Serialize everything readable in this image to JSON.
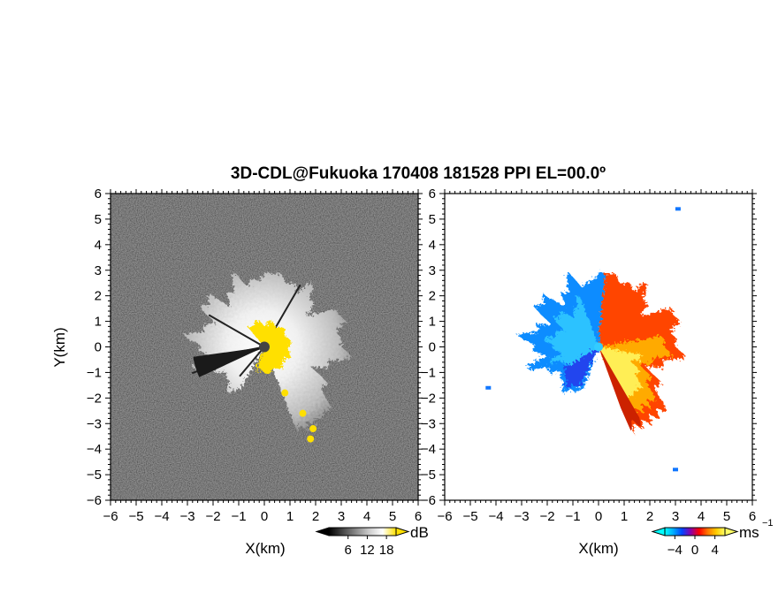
{
  "figure": {
    "title": "3D-CDL@Fukuoka 170408 181528 PPI EL=00.0º"
  },
  "chart_data": [
    {
      "type": "heatmap",
      "name": "reflectivity-ppi",
      "xlabel": "X(km)",
      "ylabel": "Y(km)",
      "xlim": [
        -6,
        6
      ],
      "ylim": [
        -6,
        6
      ],
      "xticks": [
        "−6",
        "−5",
        "−4",
        "−3",
        "−2",
        "−1",
        "0",
        "1",
        "2",
        "3",
        "4",
        "5",
        "6"
      ],
      "yticks": [
        "6",
        "5",
        "4",
        "3",
        "2",
        "1",
        "0",
        "−1",
        "−2",
        "−3",
        "−4",
        "−5",
        "−6"
      ],
      "background_noise": "dark gray speckle",
      "echo_sector_deg_from_north": [
        -160,
        160
      ],
      "echo_max_range_km": 3.8,
      "yellow_near_field_points": [
        [
          -0.4,
          0.7
        ],
        [
          0.2,
          -0.8
        ],
        [
          0.8,
          -1.8
        ],
        [
          1.5,
          -2.6
        ],
        [
          1.9,
          -3.2
        ],
        [
          1.8,
          -3.6
        ]
      ],
      "colorbar": {
        "label": "dB",
        "ticks": [
          "6",
          "12",
          "18"
        ],
        "range": [
          0,
          21
        ],
        "colors": [
          "#000000",
          "#444444",
          "#888888",
          "#cccccc",
          "#ffffff",
          "#ffe000"
        ]
      }
    },
    {
      "type": "heatmap",
      "name": "doppler-velocity-ppi",
      "xlabel": "X(km)",
      "xlim": [
        -6,
        6
      ],
      "ylim": [
        -6,
        6
      ],
      "xticks": [
        "−6",
        "−5",
        "−4",
        "−3",
        "−2",
        "−1",
        "0",
        "1",
        "2",
        "3",
        "4",
        "5",
        "6"
      ],
      "yticks": [
        "6",
        "5",
        "4",
        "3",
        "2",
        "1",
        "0",
        "−1",
        "−2",
        "−3",
        "−4",
        "−5",
        "−6"
      ],
      "west_sector_velocity_ms": -4,
      "east_sector_velocity_ms": 4,
      "isolated_points": [
        [
          3.1,
          5.4
        ],
        [
          -4.3,
          -1.6
        ],
        [
          3.0,
          -4.8
        ]
      ],
      "colorbar": {
        "label": "ms",
        "label_exponent": "−1",
        "ticks": [
          "−4",
          "0",
          "4"
        ],
        "range": [
          -6,
          6
        ],
        "colors": [
          "#00ffff",
          "#00aaff",
          "#0044ff",
          "#8800aa",
          "#ff0000",
          "#ff7700",
          "#ffcc00",
          "#ffff66"
        ]
      }
    }
  ]
}
